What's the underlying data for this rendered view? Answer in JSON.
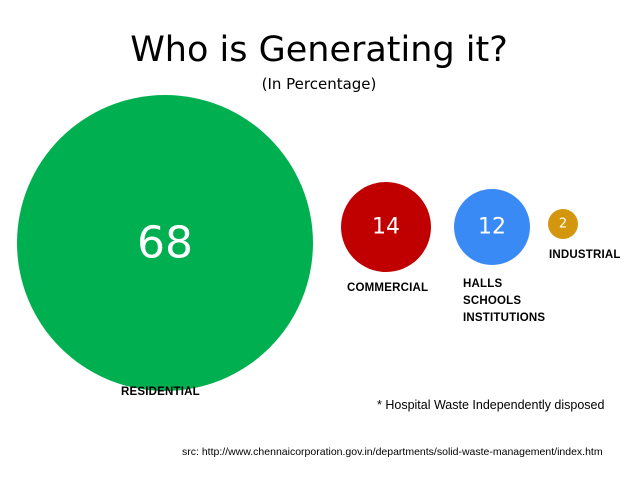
{
  "title": "Who is Generating it?",
  "subtitle": "(In Percentage)",
  "chart_data": {
    "type": "bubble",
    "title": "Who is Generating it?",
    "subtitle": "(In Percentage)",
    "categories": [
      "RESIDENTIAL",
      "COMMERCIAL",
      "HALLS\nSCHOOLS\nINSTITUTIONS",
      "INDUSTRIAL"
    ],
    "values": [
      68,
      14,
      12,
      2
    ],
    "value_labels": [
      "68",
      "14",
      "12",
      "2"
    ],
    "colors": [
      "#00b050",
      "#c00000",
      "#3a8af5",
      "#d4960c"
    ],
    "label_lines": [
      [
        "RESIDENTIAL"
      ],
      [
        "COMMERCIAL"
      ],
      [
        "HALLS",
        "SCHOOLS",
        "INSTITUTIONS"
      ],
      [
        "INDUSTRIAL"
      ]
    ]
  },
  "footnote": "* Hospital Waste Independently disposed",
  "source": "src: http://www.chennaicorporation.gov.in/departments/solid-waste-management/index.htm"
}
